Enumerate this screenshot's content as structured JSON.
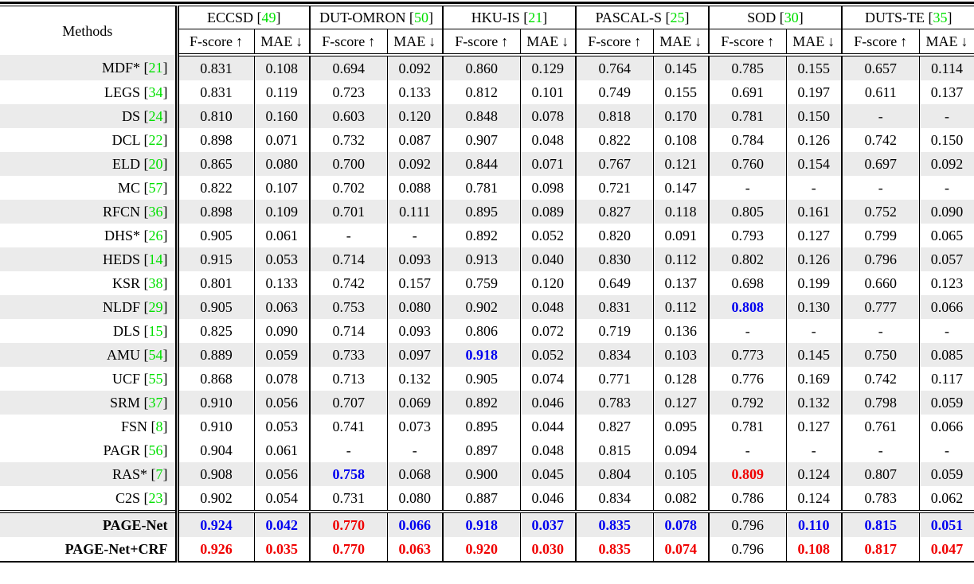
{
  "colors": {
    "citation_green": "#00e000",
    "second_best_blue": "#0000f0",
    "best_red": "#f00000",
    "stripe_gray": "#ebebeb"
  },
  "header": {
    "methods_label": "Methods",
    "fscore_label": "F-score",
    "mae_label": "MAE",
    "up_arrow": "↑",
    "down_arrow": "↓",
    "datasets": [
      {
        "name": "ECCSD",
        "ref": "49"
      },
      {
        "name": "DUT-OMRON",
        "ref": "50"
      },
      {
        "name": "HKU-IS",
        "ref": "21"
      },
      {
        "name": "PASCAL-S",
        "ref": "25"
      },
      {
        "name": "SOD",
        "ref": "30"
      },
      {
        "name": "DUTS-TE",
        "ref": "35"
      }
    ]
  },
  "rows": [
    {
      "method": "MDF*",
      "ref": "21",
      "stripe": true,
      "bold": false,
      "values": [
        "0.831",
        "0.108",
        "0.694",
        "0.092",
        "0.860",
        "0.129",
        "0.764",
        "0.145",
        "0.785",
        "0.155",
        "0.657",
        "0.114"
      ],
      "flags": "nnnnnnnnnnnn"
    },
    {
      "method": "LEGS",
      "ref": "34",
      "stripe": false,
      "bold": false,
      "values": [
        "0.831",
        "0.119",
        "0.723",
        "0.133",
        "0.812",
        "0.101",
        "0.749",
        "0.155",
        "0.691",
        "0.197",
        "0.611",
        "0.137"
      ],
      "flags": "nnnnnnnnnnnn"
    },
    {
      "method": "DS",
      "ref": "24",
      "stripe": true,
      "bold": false,
      "values": [
        "0.810",
        "0.160",
        "0.603",
        "0.120",
        "0.848",
        "0.078",
        "0.818",
        "0.170",
        "0.781",
        "0.150",
        "-",
        "-"
      ],
      "flags": "nnnnnnnnnnnn"
    },
    {
      "method": "DCL",
      "ref": "22",
      "stripe": false,
      "bold": false,
      "values": [
        "0.898",
        "0.071",
        "0.732",
        "0.087",
        "0.907",
        "0.048",
        "0.822",
        "0.108",
        "0.784",
        "0.126",
        "0.742",
        "0.150"
      ],
      "flags": "nnnnnnnnnnnn"
    },
    {
      "method": "ELD",
      "ref": "20",
      "stripe": true,
      "bold": false,
      "values": [
        "0.865",
        "0.080",
        "0.700",
        "0.092",
        "0.844",
        "0.071",
        "0.767",
        "0.121",
        "0.760",
        "0.154",
        "0.697",
        "0.092"
      ],
      "flags": "nnnnnnnnnnnn"
    },
    {
      "method": "MC",
      "ref": "57",
      "stripe": false,
      "bold": false,
      "values": [
        "0.822",
        "0.107",
        "0.702",
        "0.088",
        "0.781",
        "0.098",
        "0.721",
        "0.147",
        "-",
        "-",
        "-",
        "-"
      ],
      "flags": "nnnnnnnnnnnn"
    },
    {
      "method": "RFCN",
      "ref": "36",
      "stripe": true,
      "bold": false,
      "values": [
        "0.898",
        "0.109",
        "0.701",
        "0.111",
        "0.895",
        "0.089",
        "0.827",
        "0.118",
        "0.805",
        "0.161",
        "0.752",
        "0.090"
      ],
      "flags": "nnnnnnnnnnnn"
    },
    {
      "method": "DHS*",
      "ref": "26",
      "stripe": false,
      "bold": false,
      "values": [
        "0.905",
        "0.061",
        "-",
        "-",
        "0.892",
        "0.052",
        "0.820",
        "0.091",
        "0.793",
        "0.127",
        "0.799",
        "0.065"
      ],
      "flags": "nnnnnnnnnnnn"
    },
    {
      "method": "HEDS",
      "ref": "14",
      "stripe": true,
      "bold": false,
      "values": [
        "0.915",
        "0.053",
        "0.714",
        "0.093",
        "0.913",
        "0.040",
        "0.830",
        "0.112",
        "0.802",
        "0.126",
        "0.796",
        "0.057"
      ],
      "flags": "nnnnnnnnnnnn"
    },
    {
      "method": "KSR",
      "ref": "38",
      "stripe": false,
      "bold": false,
      "values": [
        "0.801",
        "0.133",
        "0.742",
        "0.157",
        "0.759",
        "0.120",
        "0.649",
        "0.137",
        "0.698",
        "0.199",
        "0.660",
        "0.123"
      ],
      "flags": "nnnnnnnnnnnn"
    },
    {
      "method": "NLDF",
      "ref": "29",
      "stripe": true,
      "bold": false,
      "values": [
        "0.905",
        "0.063",
        "0.753",
        "0.080",
        "0.902",
        "0.048",
        "0.831",
        "0.112",
        "0.808",
        "0.130",
        "0.777",
        "0.066"
      ],
      "flags": "nnnnnnnnbnnn"
    },
    {
      "method": "DLS",
      "ref": "15",
      "stripe": false,
      "bold": false,
      "values": [
        "0.825",
        "0.090",
        "0.714",
        "0.093",
        "0.806",
        "0.072",
        "0.719",
        "0.136",
        "-",
        "-",
        "-",
        "-"
      ],
      "flags": "nnnnnnnnnnnn"
    },
    {
      "method": "AMU",
      "ref": "54",
      "stripe": true,
      "bold": false,
      "values": [
        "0.889",
        "0.059",
        "0.733",
        "0.097",
        "0.918",
        "0.052",
        "0.834",
        "0.103",
        "0.773",
        "0.145",
        "0.750",
        "0.085"
      ],
      "flags": "nnnnbnnnnnnn"
    },
    {
      "method": "UCF",
      "ref": "55",
      "stripe": false,
      "bold": false,
      "values": [
        "0.868",
        "0.078",
        "0.713",
        "0.132",
        "0.905",
        "0.074",
        "0.771",
        "0.128",
        "0.776",
        "0.169",
        "0.742",
        "0.117"
      ],
      "flags": "nnnnnnnnnnnn"
    },
    {
      "method": "SRM",
      "ref": "37",
      "stripe": true,
      "bold": false,
      "values": [
        "0.910",
        "0.056",
        "0.707",
        "0.069",
        "0.892",
        "0.046",
        "0.783",
        "0.127",
        "0.792",
        "0.132",
        "0.798",
        "0.059"
      ],
      "flags": "nnnnnnnnnnnn"
    },
    {
      "method": "FSN",
      "ref": "8",
      "stripe": false,
      "bold": false,
      "values": [
        "0.910",
        "0.053",
        "0.741",
        "0.073",
        "0.895",
        "0.044",
        "0.827",
        "0.095",
        "0.781",
        "0.127",
        "0.761",
        "0.066"
      ],
      "flags": "nnnnnnnnnnnn"
    },
    {
      "method": "PAGR",
      "ref": "56",
      "stripe": false,
      "bold": false,
      "values": [
        "0.904",
        "0.061",
        "-",
        "-",
        "0.897",
        "0.048",
        "0.815",
        "0.094",
        "-",
        "-",
        "-",
        "-"
      ],
      "flags": "nnnnnnnnnnnn"
    },
    {
      "method": "RAS*",
      "ref": "7",
      "stripe": true,
      "bold": false,
      "values": [
        "0.908",
        "0.056",
        "0.758",
        "0.068",
        "0.900",
        "0.045",
        "0.804",
        "0.105",
        "0.809",
        "0.124",
        "0.807",
        "0.059"
      ],
      "flags": "nnbnnnnnrnnn"
    },
    {
      "method": "C2S",
      "ref": "23",
      "stripe": false,
      "bold": false,
      "values": [
        "0.902",
        "0.054",
        "0.731",
        "0.080",
        "0.887",
        "0.046",
        "0.834",
        "0.082",
        "0.786",
        "0.124",
        "0.783",
        "0.062"
      ],
      "flags": "nnnnnnnnnnnn"
    },
    {
      "method": "PAGE-Net",
      "ref": "",
      "stripe": true,
      "bold": true,
      "final": true,
      "values": [
        "0.924",
        "0.042",
        "0.770",
        "0.066",
        "0.918",
        "0.037",
        "0.835",
        "0.078",
        "0.796",
        "0.110",
        "0.815",
        "0.051"
      ],
      "flags": "bbrbbbbbnbbb"
    },
    {
      "method": "PAGE-Net+CRF",
      "ref": "",
      "stripe": false,
      "bold": true,
      "final": true,
      "values": [
        "0.926",
        "0.035",
        "0.770",
        "0.063",
        "0.920",
        "0.030",
        "0.835",
        "0.074",
        "0.796",
        "0.108",
        "0.817",
        "0.047"
      ],
      "flags": "rrrrrrrrnrrr"
    }
  ]
}
